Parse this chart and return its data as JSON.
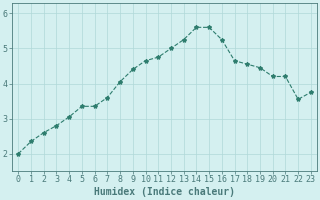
{
  "x": [
    0,
    1,
    2,
    3,
    4,
    5,
    6,
    7,
    8,
    9,
    10,
    11,
    12,
    13,
    14,
    15,
    16,
    17,
    18,
    19,
    20,
    21,
    22,
    23
  ],
  "y": [
    2.0,
    2.35,
    2.6,
    2.8,
    3.05,
    3.35,
    3.35,
    3.6,
    4.05,
    4.4,
    4.65,
    4.75,
    5.0,
    5.25,
    5.6,
    5.6,
    5.25,
    4.65,
    4.55,
    4.45,
    4.2,
    4.2,
    3.55,
    3.75
  ],
  "line_color": "#2e7d6e",
  "marker": "*",
  "marker_size": 3,
  "bg_color": "#d4f0f0",
  "grid_color": "#b0d8d8",
  "axis_color": "#4a7a7a",
  "xlabel": "Humidex (Indice chaleur)",
  "xlabel_fontsize": 7,
  "tick_fontsize": 6,
  "ylim": [
    1.5,
    6.3
  ],
  "xlim": [
    -0.5,
    23.5
  ],
  "yticks": [
    2,
    3,
    4,
    5,
    6
  ],
  "xticks": [
    0,
    1,
    2,
    3,
    4,
    5,
    6,
    7,
    8,
    9,
    10,
    11,
    12,
    13,
    14,
    15,
    16,
    17,
    18,
    19,
    20,
    21,
    22,
    23
  ]
}
